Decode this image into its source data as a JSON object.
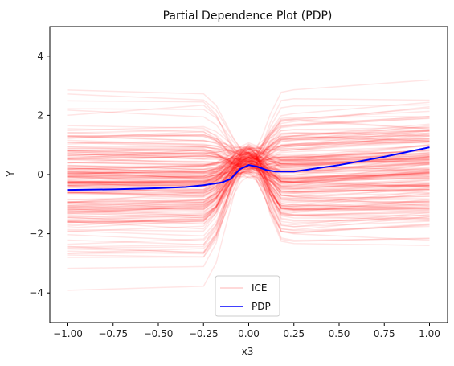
{
  "chart_data": {
    "type": "line",
    "title": "Partial Dependence Plot (PDP)",
    "xlabel": "x3",
    "ylabel": "Y",
    "xlim": [
      -1.1,
      1.1
    ],
    "ylim": [
      -5,
      5
    ],
    "xticks": [
      -1.0,
      -0.75,
      -0.5,
      -0.25,
      0.0,
      0.25,
      0.5,
      0.75,
      1.0
    ],
    "xtick_labels": [
      "−1.00",
      "−0.75",
      "−0.50",
      "−0.25",
      "0.00",
      "0.25",
      "0.50",
      "0.75",
      "1.00"
    ],
    "yticks": [
      -4,
      -2,
      0,
      2,
      4
    ],
    "ytick_labels": [
      "−4",
      "−2",
      "0",
      "2",
      "4"
    ],
    "grid": false,
    "legend_position": "bottom-center",
    "series": [
      {
        "name": "ICE",
        "color": "#ff0000",
        "alpha": 0.1,
        "count": 200,
        "description_shape": "individual conditional expectation curves; each roughly linear from x3=-1 to ~-0.1, converge toward y~0.5 at x3~0, then diverge and continue roughly linearly to x3=1"
      },
      {
        "name": "PDP",
        "color": "#0000ff",
        "x": [
          -1.0,
          -0.75,
          -0.5,
          -0.35,
          -0.25,
          -0.15,
          -0.1,
          -0.05,
          0.0,
          0.05,
          0.1,
          0.15,
          0.25,
          0.5,
          0.75,
          1.0
        ],
        "values": [
          -0.52,
          -0.5,
          -0.46,
          -0.42,
          -0.36,
          -0.27,
          -0.15,
          0.18,
          0.32,
          0.26,
          0.15,
          0.1,
          0.1,
          0.32,
          0.6,
          0.92
        ]
      }
    ]
  }
}
